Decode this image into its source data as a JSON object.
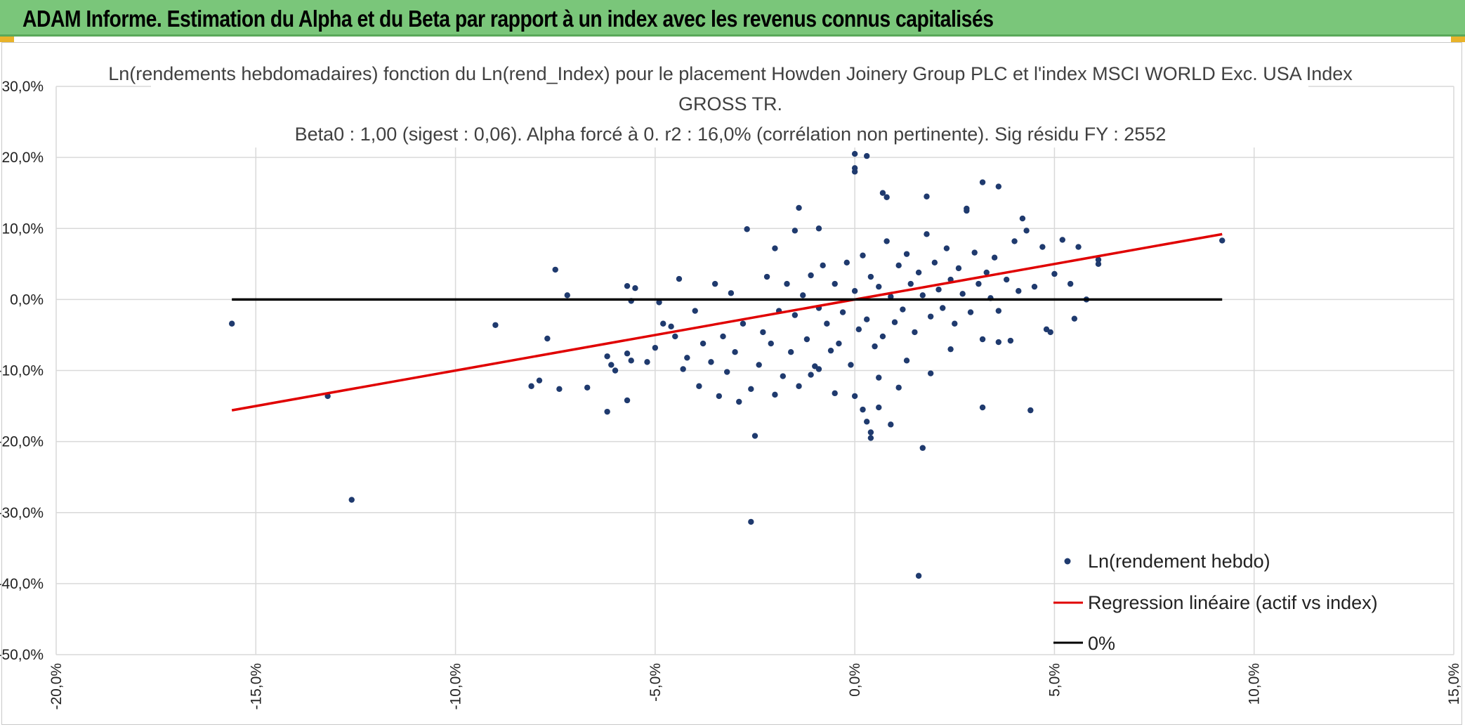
{
  "banner": {
    "title": "ADAM Informe. Estimation du Alpha et du Beta par rapport à un index avec les revenus connus capitalisés",
    "background": "#7ac67a"
  },
  "chart_data": {
    "type": "scatter",
    "title_lines": [
      "Ln(rendements hebdomadaires) fonction du Ln(rend_Index) pour le placement Howden Joinery Group PLC et l'index MSCI WORLD Exc. USA Index",
      "GROSS TR.",
      "Beta0 : 1,00 (sigest : 0,06). Alpha forcé à 0. r2 : 16,0% (corrélation non pertinente). Sig résidu FY : 2552"
    ],
    "xlabel": "",
    "ylabel": "",
    "xlim": [
      -0.2,
      0.15
    ],
    "ylim": [
      -0.5,
      0.3
    ],
    "x_ticks": [
      "-20,0%",
      "-15,0%",
      "-10,0%",
      "-5,0%",
      "0,0%",
      "5,0%",
      "10,0%",
      "15,0%"
    ],
    "y_ticks": [
      "30,0%",
      "20,0%",
      "10,0%",
      "0,0%",
      "-10,0%",
      "-20,0%",
      "-30,0%",
      "-40,0%",
      "-50,0%"
    ],
    "grid": true,
    "legend_position": "bottom-right",
    "legend": [
      "Ln(rendement hebdo)",
      "Regression linéaire (actif vs index)",
      "0%"
    ],
    "series": [
      {
        "name": "Ln(rendement hebdo)",
        "kind": "scatter",
        "color": "#1f3a6e",
        "points": [
          [
            -0.156,
            -0.034
          ],
          [
            -0.132,
            -0.136
          ],
          [
            -0.126,
            -0.282
          ],
          [
            -0.09,
            -0.036
          ],
          [
            -0.081,
            -0.122
          ],
          [
            -0.079,
            -0.114
          ],
          [
            -0.077,
            -0.055
          ],
          [
            -0.075,
            0.042
          ],
          [
            -0.074,
            -0.126
          ],
          [
            -0.072,
            0.006
          ],
          [
            -0.067,
            -0.124
          ],
          [
            -0.062,
            -0.158
          ],
          [
            -0.062,
            -0.08
          ],
          [
            -0.061,
            -0.092
          ],
          [
            -0.06,
            -0.1
          ],
          [
            -0.057,
            -0.076
          ],
          [
            -0.057,
            -0.142
          ],
          [
            -0.057,
            0.019
          ],
          [
            -0.056,
            -0.002
          ],
          [
            -0.056,
            -0.086
          ],
          [
            -0.055,
            0.016
          ],
          [
            -0.052,
            -0.088
          ],
          [
            -0.05,
            -0.068
          ],
          [
            -0.049,
            -0.004
          ],
          [
            -0.048,
            -0.034
          ],
          [
            -0.046,
            -0.038
          ],
          [
            -0.045,
            -0.052
          ],
          [
            -0.044,
            0.029
          ],
          [
            -0.043,
            -0.098
          ],
          [
            -0.042,
            -0.082
          ],
          [
            -0.04,
            -0.016
          ],
          [
            -0.039,
            -0.122
          ],
          [
            -0.038,
            -0.062
          ],
          [
            -0.036,
            -0.088
          ],
          [
            -0.035,
            0.022
          ],
          [
            -0.034,
            -0.136
          ],
          [
            -0.033,
            -0.052
          ],
          [
            -0.032,
            -0.102
          ],
          [
            -0.031,
            0.009
          ],
          [
            -0.03,
            -0.074
          ],
          [
            -0.029,
            -0.144
          ],
          [
            -0.028,
            -0.034
          ],
          [
            -0.027,
            0.099
          ],
          [
            -0.026,
            -0.126
          ],
          [
            -0.025,
            -0.192
          ],
          [
            -0.024,
            -0.092
          ],
          [
            -0.023,
            -0.046
          ],
          [
            -0.022,
            0.032
          ],
          [
            -0.021,
            -0.062
          ],
          [
            -0.02,
            0.072
          ],
          [
            -0.019,
            -0.016
          ],
          [
            -0.018,
            -0.108
          ],
          [
            -0.017,
            0.022
          ],
          [
            -0.016,
            -0.074
          ],
          [
            -0.015,
            -0.022
          ],
          [
            -0.014,
            -0.122
          ],
          [
            -0.013,
            0.006
          ],
          [
            -0.012,
            -0.056
          ],
          [
            -0.011,
            0.034
          ],
          [
            -0.01,
            -0.094
          ],
          [
            -0.009,
            -0.012
          ],
          [
            -0.008,
            0.048
          ],
          [
            -0.007,
            -0.034
          ],
          [
            -0.006,
            -0.072
          ],
          [
            -0.005,
            0.022
          ],
          [
            -0.004,
            -0.062
          ],
          [
            -0.003,
            -0.018
          ],
          [
            -0.002,
            0.052
          ],
          [
            -0.001,
            -0.092
          ],
          [
            0.0,
            0.012
          ],
          [
            0.001,
            -0.042
          ],
          [
            0.002,
            0.062
          ],
          [
            0.003,
            -0.028
          ],
          [
            0.004,
            0.032
          ],
          [
            0.005,
            -0.066
          ],
          [
            0.006,
            0.018
          ],
          [
            0.007,
            -0.052
          ],
          [
            0.008,
            0.082
          ],
          [
            0.009,
            0.004
          ],
          [
            0.01,
            -0.032
          ],
          [
            0.011,
            0.048
          ],
          [
            0.012,
            -0.014
          ],
          [
            0.013,
            0.064
          ],
          [
            0.014,
            0.022
          ],
          [
            0.015,
            -0.046
          ],
          [
            0.016,
            0.038
          ],
          [
            0.017,
            0.006
          ],
          [
            0.018,
            0.092
          ],
          [
            0.019,
            -0.024
          ],
          [
            0.02,
            0.052
          ],
          [
            0.021,
            0.014
          ],
          [
            0.022,
            -0.012
          ],
          [
            0.023,
            0.072
          ],
          [
            0.024,
            0.028
          ],
          [
            0.025,
            -0.034
          ],
          [
            0.026,
            0.044
          ],
          [
            0.027,
            0.008
          ],
          [
            0.028,
            0.128
          ],
          [
            0.029,
            -0.018
          ],
          [
            0.03,
            0.066
          ],
          [
            0.031,
            0.022
          ],
          [
            0.032,
            -0.056
          ],
          [
            0.033,
            0.038
          ],
          [
            0.034,
            0.002
          ],
          [
            0.035,
            0.059
          ],
          [
            0.036,
            -0.016
          ],
          [
            0.038,
            0.028
          ],
          [
            0.039,
            -0.058
          ],
          [
            0.04,
            0.082
          ],
          [
            0.041,
            0.012
          ],
          [
            0.042,
            0.114
          ],
          [
            0.043,
            0.097
          ],
          [
            0.044,
            -0.156
          ],
          [
            0.045,
            0.018
          ],
          [
            0.047,
            0.074
          ],
          [
            0.048,
            -0.042
          ],
          [
            0.049,
            -0.046
          ],
          [
            0.05,
            0.036
          ],
          [
            0.052,
            0.084
          ],
          [
            0.054,
            0.022
          ],
          [
            0.055,
            -0.027
          ],
          [
            0.056,
            0.074
          ],
          [
            0.058,
            0.0
          ],
          [
            0.061,
            0.05
          ],
          [
            0.061,
            0.056
          ],
          [
            0.092,
            0.083
          ],
          [
            0.032,
            0.165
          ],
          [
            0.036,
            0.159
          ],
          [
            0.028,
            0.125
          ],
          [
            0.018,
            0.145
          ],
          [
            0.007,
            0.15
          ],
          [
            0.008,
            0.144
          ],
          [
            0.0,
            0.205
          ],
          [
            0.003,
            0.202
          ],
          [
            0.0,
            0.185
          ],
          [
            0.0,
            0.18
          ],
          [
            -0.009,
            0.1
          ],
          [
            -0.014,
            0.129
          ],
          [
            -0.015,
            0.097
          ],
          [
            0.0,
            -0.136
          ],
          [
            0.002,
            -0.155
          ],
          [
            0.003,
            -0.172
          ],
          [
            0.004,
            -0.187
          ],
          [
            0.004,
            -0.195
          ],
          [
            0.006,
            -0.152
          ],
          [
            0.009,
            -0.176
          ],
          [
            0.016,
            -0.389
          ],
          [
            0.017,
            -0.209
          ],
          [
            -0.026,
            -0.313
          ],
          [
            0.032,
            -0.152
          ],
          [
            -0.005,
            -0.132
          ],
          [
            -0.009,
            -0.098
          ],
          [
            0.013,
            -0.086
          ],
          [
            0.019,
            -0.104
          ],
          [
            0.024,
            -0.07
          ],
          [
            0.006,
            -0.11
          ],
          [
            -0.011,
            -0.106
          ],
          [
            0.011,
            -0.124
          ],
          [
            -0.02,
            -0.134
          ],
          [
            0.036,
            -0.06
          ]
        ]
      },
      {
        "name": "Regression linéaire (actif vs index)",
        "kind": "line",
        "color": "#e00000",
        "points": [
          [
            -0.156,
            -0.156
          ],
          [
            0.092,
            0.092
          ]
        ]
      },
      {
        "name": "0%",
        "kind": "line",
        "color": "#000000",
        "points": [
          [
            -0.156,
            0.0
          ],
          [
            0.092,
            0.0
          ]
        ]
      }
    ]
  }
}
